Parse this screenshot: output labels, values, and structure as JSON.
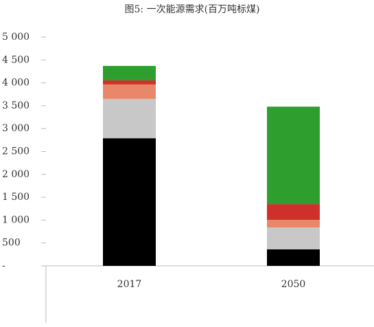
{
  "chart_data": {
    "type": "stacked-bar",
    "title": "图5: 一次能源需求(百万吨标煤)",
    "categories": [
      "2017",
      "2050"
    ],
    "series": [
      {
        "color": "#000000",
        "values": [
          2790,
          360
        ]
      },
      {
        "color": "#c8c8c8",
        "values": [
          860,
          480
        ]
      },
      {
        "color": "#e8876a",
        "values": [
          315,
          165
        ]
      },
      {
        "color": "#d0302c",
        "values": [
          90,
          345
        ]
      },
      {
        "color": "#2e9e2e",
        "values": [
          315,
          2130
        ]
      }
    ],
    "ylim": [
      0,
      5000
    ],
    "yticks": [
      {
        "value": 0,
        "label": "-"
      },
      500,
      {
        "value": 1000,
        "label": "1 000"
      },
      {
        "value": 1500,
        "label": "1 500"
      },
      {
        "value": 2000,
        "label": "2 000"
      },
      {
        "value": 2500,
        "label": "2 500"
      },
      {
        "value": 3000,
        "label": "3 000"
      },
      {
        "value": 3500,
        "label": "3 500"
      },
      {
        "value": 4000,
        "label": "4 000"
      },
      {
        "value": 4500,
        "label": "4 500"
      },
      {
        "value": 5000,
        "label": "5 000"
      }
    ],
    "grid": false
  }
}
